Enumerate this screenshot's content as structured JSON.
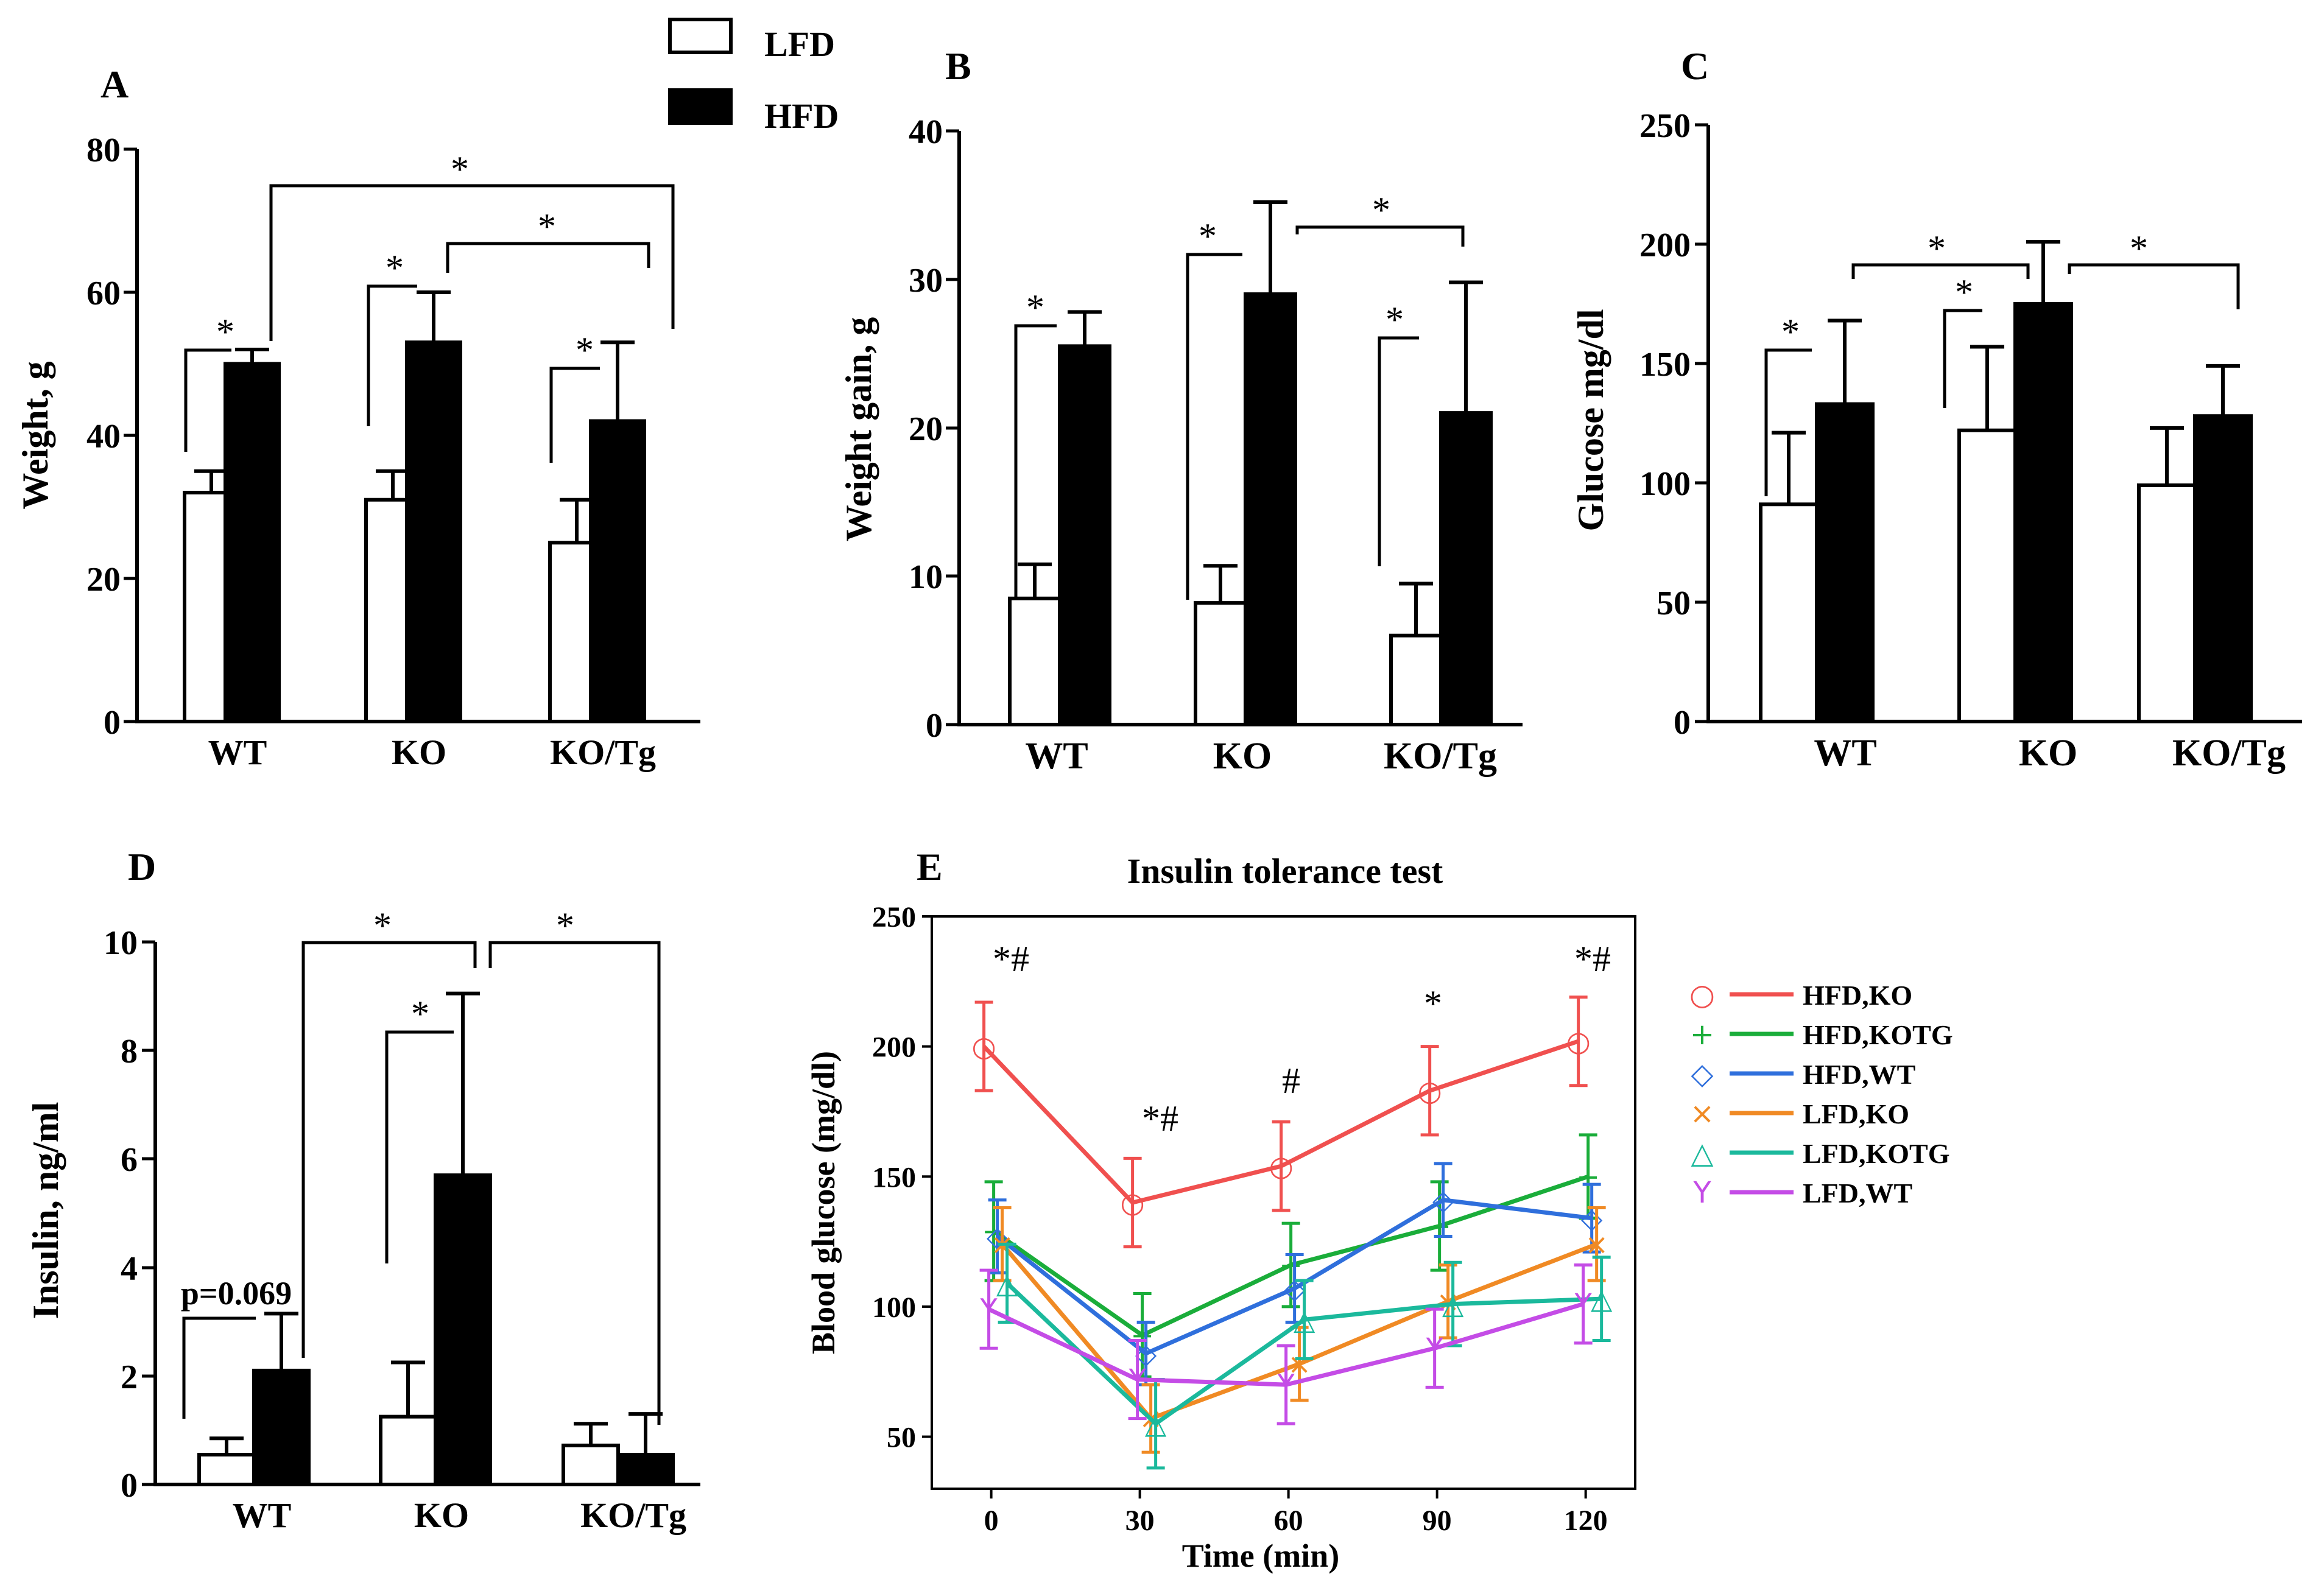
{
  "legend": {
    "lfd": "LFD",
    "hfd": "HFD"
  },
  "chart_data": [
    {
      "id": "A",
      "type": "bar",
      "panel_label": "A",
      "ylabel": "Weight, g",
      "ylim": [
        0,
        80
      ],
      "yticks": [
        "0",
        "20",
        "40",
        "60",
        "80"
      ],
      "categories": [
        "WT",
        "KO",
        "KO/Tg"
      ],
      "series": [
        {
          "name": "LFD",
          "values": [
            32,
            31,
            25
          ],
          "errors": [
            3,
            4,
            6
          ]
        },
        {
          "name": "HFD",
          "values": [
            50,
            53,
            42
          ],
          "errors": [
            2,
            7,
            11
          ]
        }
      ],
      "annotations": [
        "*",
        "*",
        "*",
        "*",
        "*"
      ]
    },
    {
      "id": "B",
      "type": "bar",
      "panel_label": "B",
      "ylabel": "Weight gain, g",
      "ylim": [
        0,
        40
      ],
      "yticks": [
        "0",
        "10",
        "20",
        "30",
        "40"
      ],
      "categories": [
        "WT",
        "KO",
        "KO/Tg"
      ],
      "series": [
        {
          "name": "LFD",
          "values": [
            8.5,
            8.2,
            6
          ],
          "errors": [
            2.3,
            2.5,
            3.5
          ]
        },
        {
          "name": "HFD",
          "values": [
            25.5,
            29,
            21
          ],
          "errors": [
            2.3,
            6.2,
            8.8
          ]
        }
      ],
      "annotations": [
        "*",
        "*",
        "*",
        "*"
      ]
    },
    {
      "id": "C",
      "type": "bar",
      "panel_label": "C",
      "ylabel": "Glucose mg/dl",
      "ylim": [
        0,
        250
      ],
      "yticks": [
        "0",
        "50",
        "100",
        "150",
        "200",
        "250"
      ],
      "categories": [
        "WT",
        "KO",
        "KO/Tg"
      ],
      "series": [
        {
          "name": "LFD",
          "values": [
            91,
            122,
            99
          ],
          "errors": [
            30,
            35,
            24
          ]
        },
        {
          "name": "HFD",
          "values": [
            133,
            175,
            128
          ],
          "errors": [
            35,
            26,
            21
          ]
        }
      ],
      "annotations": [
        "*",
        "*",
        "*",
        "*"
      ]
    },
    {
      "id": "D",
      "type": "bar",
      "panel_label": "D",
      "ylabel": "Insulin, ng/ml",
      "ylim": [
        0,
        10
      ],
      "yticks": [
        "0",
        "2",
        "4",
        "6",
        "8",
        "10"
      ],
      "categories": [
        "WT",
        "KO",
        "KO/Tg"
      ],
      "series": [
        {
          "name": "LFD",
          "values": [
            0.55,
            1.25,
            0.72
          ],
          "errors": [
            0.3,
            1.0,
            0.4
          ]
        },
        {
          "name": "HFD",
          "values": [
            2.1,
            5.7,
            0.55
          ],
          "errors": [
            1.05,
            3.35,
            0.75
          ]
        }
      ],
      "annotations": [
        "p=0.069",
        "*",
        "*",
        "*"
      ]
    },
    {
      "id": "E",
      "type": "line",
      "panel_label": "E",
      "title": "Insulin tolerance test",
      "xlabel": "Time (min)",
      "ylabel": "Blood glucose (mg/dl)",
      "x": [
        0,
        30,
        60,
        90,
        120
      ],
      "xlim": [
        -12,
        130
      ],
      "ylim": [
        30,
        250
      ],
      "xticks": [
        "0",
        "30",
        "60",
        "90",
        "120"
      ],
      "yticks": [
        "50",
        "100",
        "150",
        "200",
        "250"
      ],
      "series": [
        {
          "name": "HFD,KO",
          "marker": "○",
          "color": "#f0504f",
          "values": [
            200,
            140,
            154,
            183,
            202
          ],
          "errors": [
            17,
            17,
            17,
            17,
            17
          ]
        },
        {
          "name": "HFD,KOTG",
          "marker": "+",
          "color": "#1aad3a",
          "values": [
            129,
            89,
            116,
            131,
            150
          ],
          "errors": [
            19,
            16,
            16,
            17,
            16
          ]
        },
        {
          "name": "HFD,WT",
          "marker": "◇",
          "color": "#2f6fdc",
          "values": [
            127,
            82,
            107,
            141,
            134
          ],
          "errors": [
            14,
            12,
            13,
            14,
            13
          ]
        },
        {
          "name": "LFD,KO",
          "marker": "×",
          "color": "#f08a24",
          "values": [
            124,
            57,
            78,
            102,
            124
          ],
          "errors": [
            14,
            13,
            14,
            14,
            14
          ]
        },
        {
          "name": "LFD,KOTG",
          "marker": "△",
          "color": "#1bb99c",
          "values": [
            109,
            55,
            95,
            101,
            103
          ],
          "errors": [
            15,
            17,
            15,
            16,
            16
          ]
        },
        {
          "name": "LFD,WT",
          "marker": "Y",
          "color": "#c44ce6",
          "values": [
            99,
            72,
            70,
            84,
            101
          ],
          "errors": [
            15,
            15,
            15,
            15,
            15
          ]
        }
      ],
      "point_annotations": [
        "*#",
        "*#",
        "#",
        "*",
        "*#"
      ]
    }
  ]
}
